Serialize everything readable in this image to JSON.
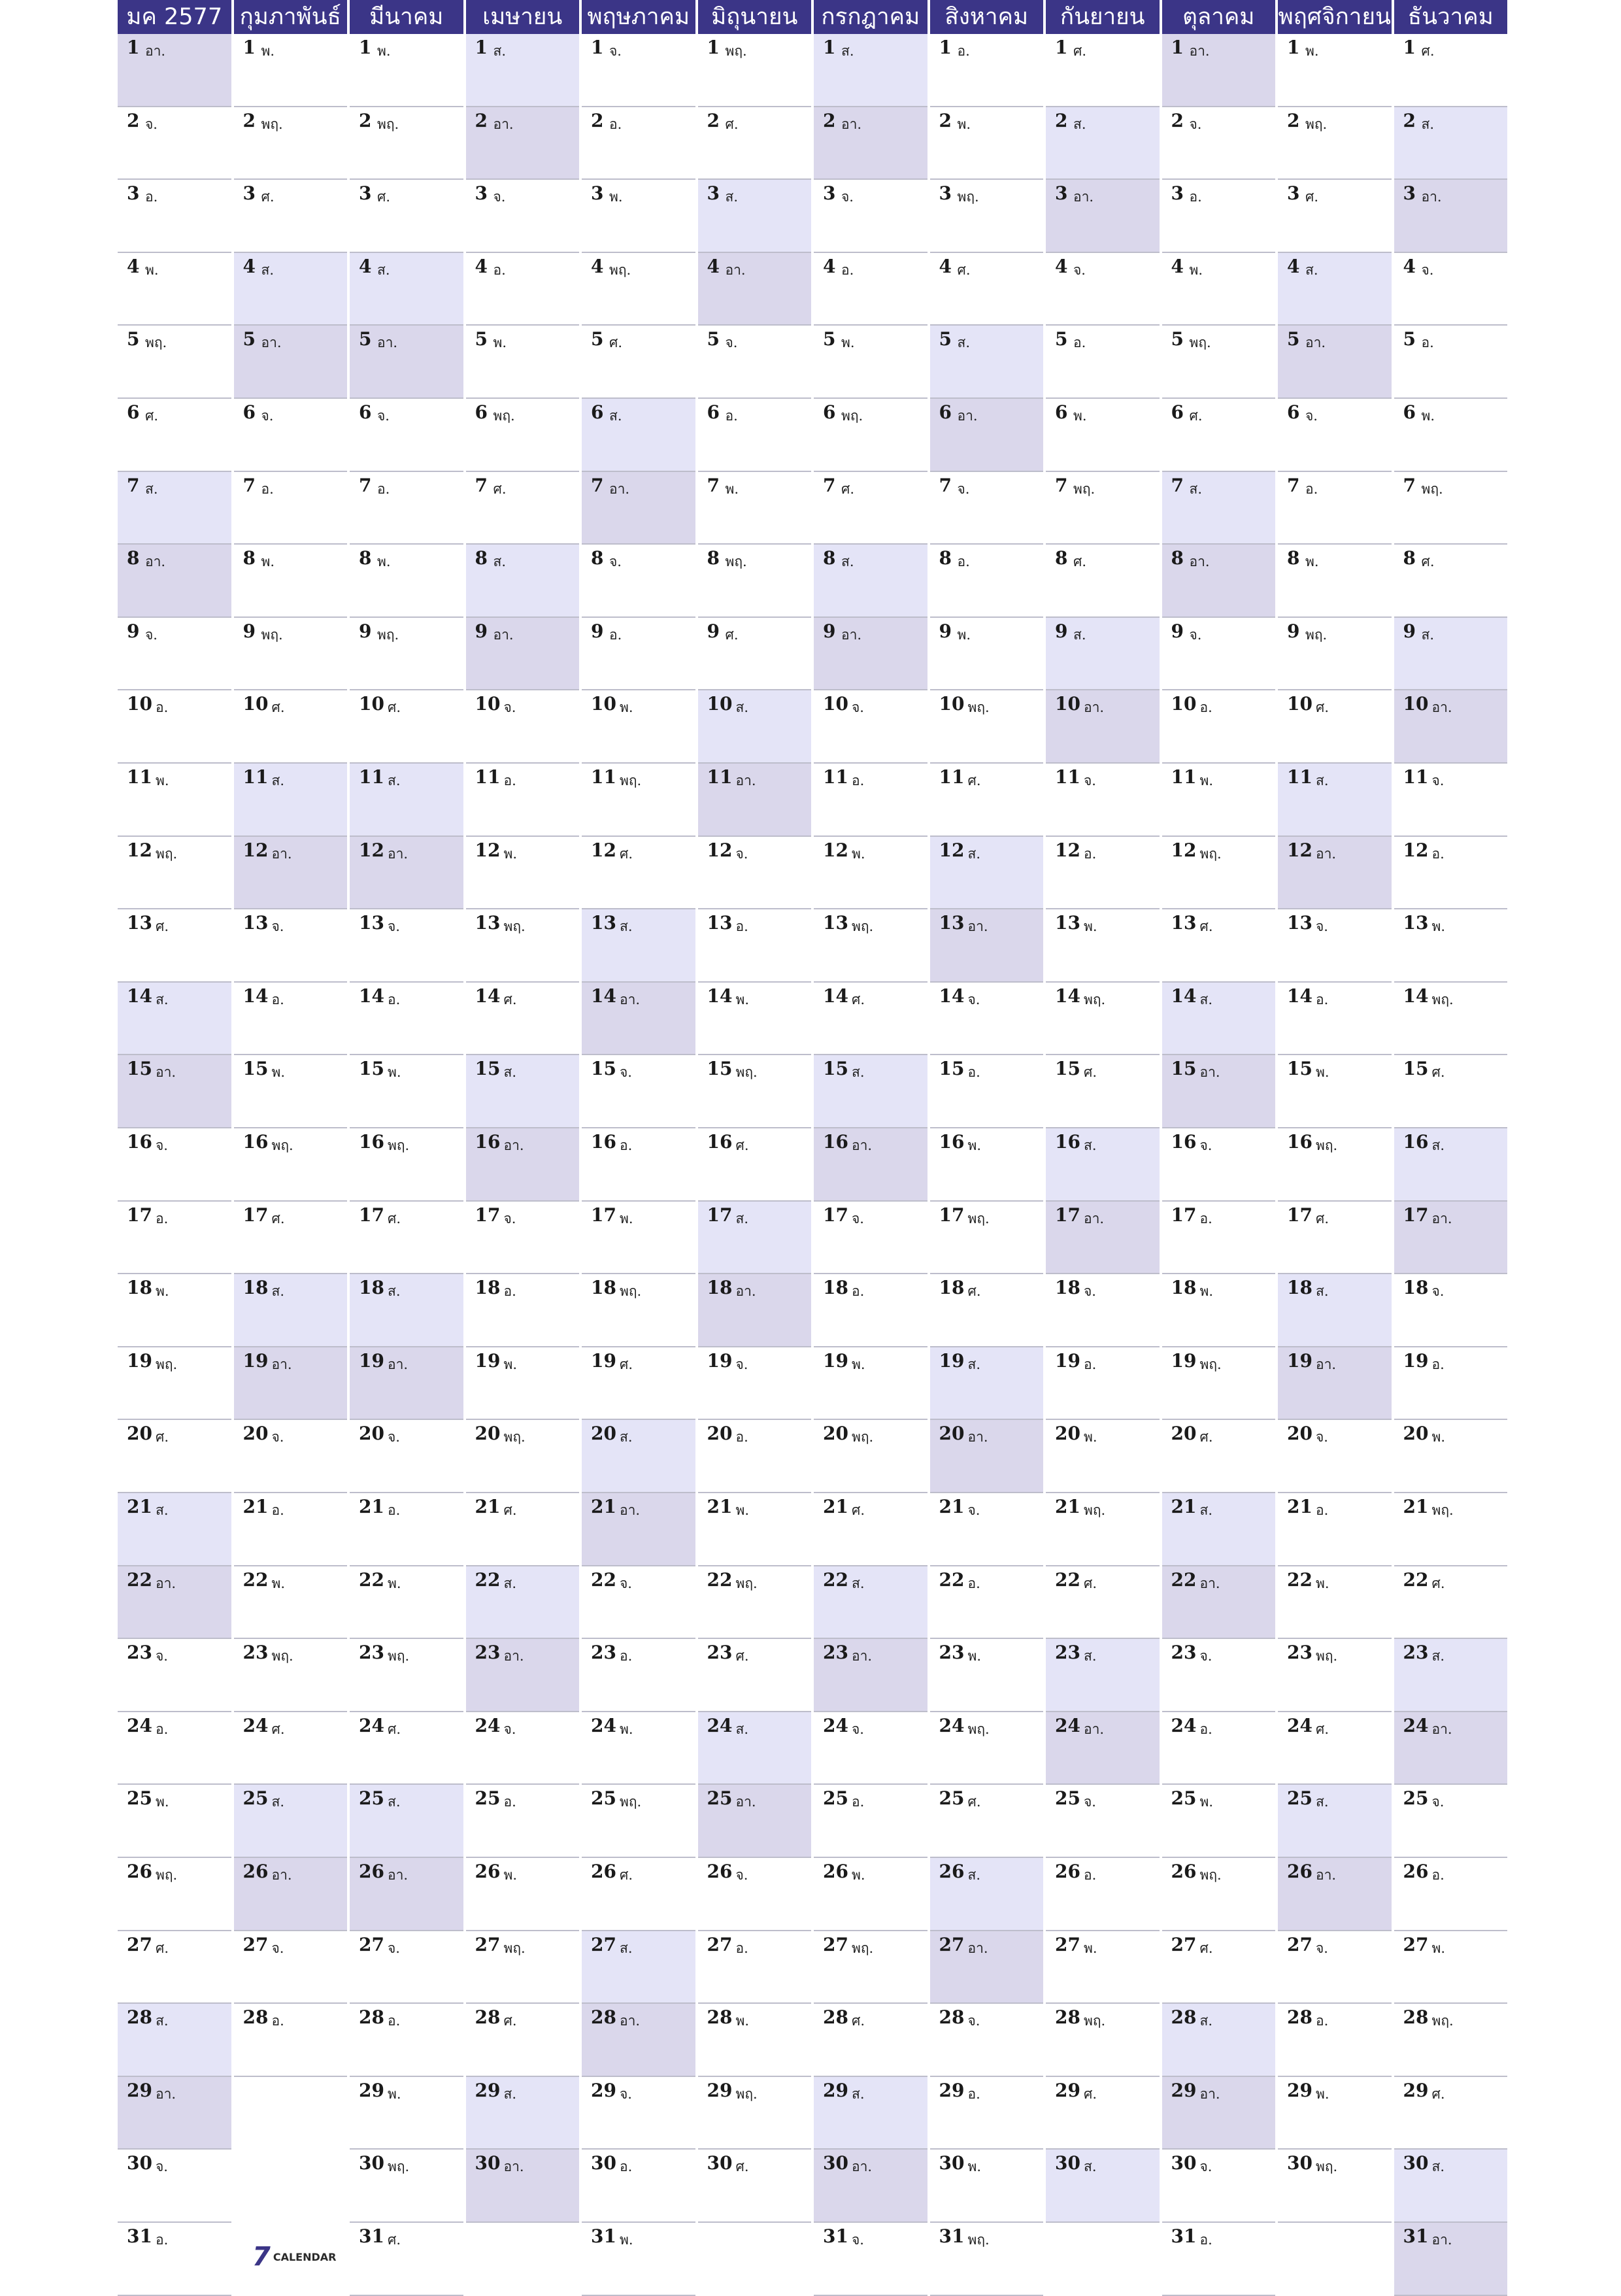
{
  "months": [
    "มค 2577",
    "กุมภาพันธ์",
    "มีนาคม",
    "เมษายน",
    "พฤษภาคม",
    "มิถุนายน",
    "กรกฎาคม",
    "สิงหาคม",
    "กันยายน",
    "ตุลาคม",
    "พฤศจิกายน",
    "ธันวาคม"
  ],
  "days_in_month": [
    31,
    28,
    31,
    30,
    31,
    30,
    31,
    31,
    30,
    31,
    30,
    31
  ],
  "first_weekday_index": [
    0,
    3,
    3,
    6,
    1,
    4,
    6,
    2,
    5,
    0,
    3,
    5
  ],
  "weekday_abbrev": [
    "อา.",
    "จ.",
    "อ.",
    "พ.",
    "พฤ.",
    "ศ.",
    "ส."
  ],
  "colors": {
    "header_bg": "#3b3587",
    "header_text": "#ffffff",
    "saturday_fill": "#e4e4f7",
    "sunday_fill": "#dad7eb",
    "row_divider": "#bdbdcb"
  },
  "logo": {
    "mark": "7",
    "text": "CALENDAR"
  }
}
